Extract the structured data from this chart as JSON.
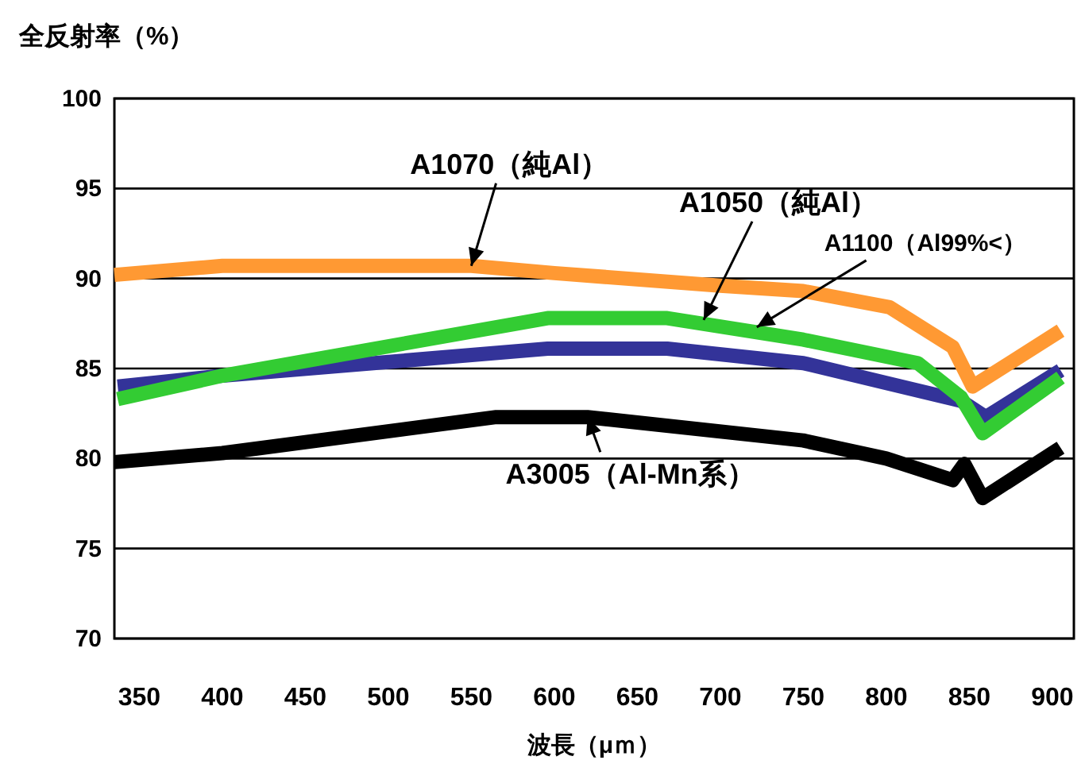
{
  "chart_data": {
    "type": "line",
    "ylabel": "全反射率（%）",
    "xlabel": "波長（μｍ）",
    "xlim": [
      335,
      913
    ],
    "xticks": [
      350,
      400,
      450,
      500,
      550,
      600,
      650,
      700,
      750,
      800,
      850,
      900
    ],
    "ylim": [
      70,
      100
    ],
    "yticks": [
      70,
      75,
      80,
      85,
      90,
      95,
      100
    ],
    "grid": "y",
    "line_style": "solid",
    "marker": "none",
    "series": [
      {
        "color": "#ff9933",
        "x": [
          335,
          400,
          550,
          600,
          700,
          750,
          802,
          840,
          852,
          905
        ],
        "values": [
          90.2,
          90.7,
          90.7,
          90.3,
          89.6,
          89.3,
          88.4,
          86.2,
          84.0,
          87.1
        ]
      },
      {
        "color": "#333399",
        "x": [
          337,
          400,
          596,
          668,
          750,
          800,
          845,
          860,
          905
        ],
        "values": [
          84.0,
          84.6,
          86.1,
          86.1,
          85.3,
          84.2,
          83.2,
          82.3,
          84.9
        ]
      },
      {
        "color": "#33cc33",
        "x": [
          337,
          400,
          596,
          668,
          750,
          819,
          845,
          858,
          905
        ],
        "values": [
          83.3,
          84.6,
          87.8,
          87.8,
          86.6,
          85.3,
          83.4,
          81.4,
          84.5
        ]
      },
      {
        "color": "#000000",
        "x": [
          335,
          400,
          565,
          620,
          750,
          800,
          840,
          847,
          858,
          905
        ],
        "values": [
          79.8,
          80.3,
          82.3,
          82.3,
          81.0,
          80.0,
          78.8,
          79.7,
          77.8,
          80.6
        ]
      }
    ],
    "annotations": [
      {
        "text": "A1070（純Al）",
        "x": 550,
        "y": 90.7
      },
      {
        "text": "A1050（純Al）",
        "x": 690,
        "y": 87.7
      },
      {
        "text": "A1100（Al99%<）",
        "x": 722,
        "y": 87.3
      },
      {
        "text": "A3005（Al-Mn系）",
        "x": 620,
        "y": 82.3
      }
    ]
  }
}
